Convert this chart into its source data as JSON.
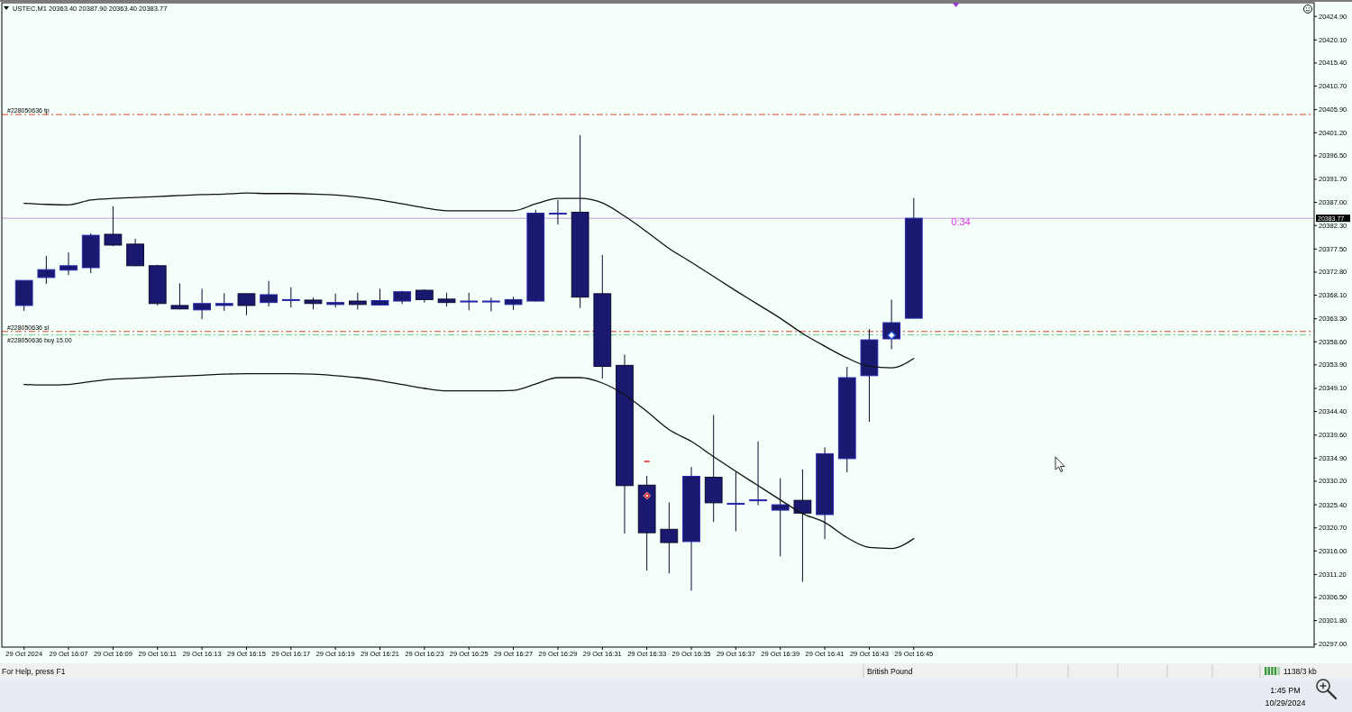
{
  "chart_data": {
    "type": "candlestick",
    "title": "USTEC,M1 20363.40 20387.90 20363.40 20383.77",
    "color": "#191970",
    "x": [
      "2024-10-29T16:05",
      "2024-10-29T16:06",
      "2024-10-29T16:07",
      "2024-10-29T16:08",
      "2024-10-29T16:09",
      "2024-10-29T16:10",
      "2024-10-29T16:11",
      "2024-10-29T16:12",
      "2024-10-29T16:13",
      "2024-10-29T16:14",
      "2024-10-29T16:15",
      "2024-10-29T16:16",
      "2024-10-29T16:17",
      "2024-10-29T16:18",
      "2024-10-29T16:19",
      "2024-10-29T16:20",
      "2024-10-29T16:21",
      "2024-10-29T16:22",
      "2024-10-29T16:23",
      "2024-10-29T16:24",
      "2024-10-29T16:25",
      "2024-10-29T16:26",
      "2024-10-29T16:27",
      "2024-10-29T16:28",
      "2024-10-29T16:29",
      "2024-10-29T16:30",
      "2024-10-29T16:31",
      "2024-10-29T16:32",
      "2024-10-29T16:33",
      "2024-10-29T16:34",
      "2024-10-29T16:35",
      "2024-10-29T16:36",
      "2024-10-29T16:37",
      "2024-10-29T16:38",
      "2024-10-29T16:39",
      "2024-10-29T16:40",
      "2024-10-29T16:41",
      "2024-10-29T16:42",
      "2024-10-29T16:43",
      "2024-10-29T16:44",
      "2024-10-29T16:45"
    ],
    "ohlc": [
      [
        20366.0,
        20371.1,
        20364.9,
        20371.1
      ],
      [
        20371.7,
        20376.1,
        20370.4,
        20373.3
      ],
      [
        20373.2,
        20376.8,
        20372.2,
        20374.1
      ],
      [
        20373.7,
        20380.7,
        20372.6,
        20380.3
      ],
      [
        20380.5,
        20386.2,
        20378.1,
        20378.3
      ],
      [
        20378.5,
        20379.6,
        20374.0,
        20374.1
      ],
      [
        20374.1,
        20374.3,
        20366.0,
        20366.4
      ],
      [
        20366.0,
        20370.5,
        20365.2,
        20365.3
      ],
      [
        20365.1,
        20369.4,
        20363.2,
        20366.4
      ],
      [
        20366.0,
        20368.5,
        20364.9,
        20366.4
      ],
      [
        20368.4,
        20368.4,
        20364.0,
        20366.0
      ],
      [
        20366.6,
        20371.0,
        20365.8,
        20368.2
      ],
      [
        20367.2,
        20369.7,
        20365.6,
        20367.2
      ],
      [
        20367.1,
        20367.6,
        20365.2,
        20366.4
      ],
      [
        20366.2,
        20368.4,
        20365.6,
        20366.6
      ],
      [
        20366.9,
        20368.6,
        20365.2,
        20366.2
      ],
      [
        20366.1,
        20369.4,
        20366.0,
        20367.0
      ],
      [
        20366.9,
        20369.0,
        20366.3,
        20368.8
      ],
      [
        20369.1,
        20369.3,
        20366.6,
        20367.2
      ],
      [
        20367.3,
        20368.6,
        20365.8,
        20366.6
      ],
      [
        20366.9,
        20368.6,
        20365.0,
        20366.9
      ],
      [
        20366.9,
        20367.6,
        20364.8,
        20366.9
      ],
      [
        20366.2,
        20367.8,
        20365.1,
        20367.2
      ],
      [
        20366.9,
        20385.5,
        20366.8,
        20384.8
      ],
      [
        20384.8,
        20387.5,
        20382.5,
        20384.8
      ],
      [
        20385.0,
        20400.7,
        20365.5,
        20367.7
      ],
      [
        20368.4,
        20376.3,
        20351.1,
        20353.6
      ],
      [
        20353.8,
        20356.0,
        20319.5,
        20329.3
      ],
      [
        20329.4,
        20331.3,
        20312.0,
        20319.7
      ],
      [
        20320.4,
        20325.9,
        20311.4,
        20317.7
      ],
      [
        20317.9,
        20333.1,
        20307.9,
        20331.2
      ],
      [
        20331.0,
        20343.7,
        20321.9,
        20325.8
      ],
      [
        20325.5,
        20332.1,
        20320.0,
        20325.7
      ],
      [
        20326.4,
        20338.3,
        20325.3,
        20326.4
      ],
      [
        20324.3,
        20330.8,
        20314.9,
        20325.4
      ],
      [
        20326.3,
        20332.6,
        20309.7,
        20323.7
      ],
      [
        20323.4,
        20337.1,
        20318.4,
        20335.8
      ],
      [
        20334.8,
        20353.5,
        20332.0,
        20351.3
      ],
      [
        20351.7,
        20361.2,
        20342.3,
        20359.0
      ],
      [
        20359.2,
        20367.2,
        20357.1,
        20362.5
      ],
      [
        20363.4,
        20387.9,
        20363.4,
        20383.77
      ]
    ],
    "series": [
      {
        "type": "line",
        "color": "#111111",
        "values": [
          20386.8,
          20386.6,
          20386.5,
          20387.5,
          20387.8,
          20388.0,
          20388.2,
          20388.4,
          20388.6,
          20388.7,
          20388.9,
          20388.8,
          20388.8,
          20388.7,
          20388.5,
          20388.1,
          20387.5,
          20386.7,
          20385.9,
          20385.3,
          20385.3,
          20385.3,
          20385.3,
          20386.7,
          20387.8,
          20387.8,
          20386.9,
          20384.2,
          20381.0,
          20377.6,
          20374.8,
          20371.9,
          20369.0,
          20366.2,
          20363.4,
          20360.3,
          20357.7,
          20355.3,
          20353.6,
          20353.3,
          20355.2
        ]
      },
      {
        "type": "line",
        "color": "#111111",
        "values": [
          20349.9,
          20349.8,
          20349.9,
          20350.5,
          20351.0,
          20351.2,
          20351.4,
          20351.6,
          20351.8,
          20352.0,
          20352.1,
          20352.1,
          20352.1,
          20352.0,
          20351.7,
          20351.3,
          20350.7,
          20349.9,
          20349.1,
          20348.6,
          20348.6,
          20348.6,
          20348.7,
          20350.0,
          20351.3,
          20351.3,
          20350.2,
          20347.8,
          20344.4,
          20340.7,
          20338.3,
          20335.2,
          20332.2,
          20329.3,
          20326.4,
          20323.6,
          20321.8,
          20318.7,
          20316.7,
          20316.5,
          20318.5
        ]
      }
    ],
    "xlim": [
      "2024-10-29T16:04",
      "2024-10-29T17:03"
    ],
    "xticks": [
      {
        "value": "2024-10-29T16:05",
        "label": "29 Oct 2024"
      },
      {
        "value": "2024-10-29T16:07",
        "label": "29 Oct 16:07"
      },
      {
        "value": "2024-10-29T16:09",
        "label": "29 Oct 16:09"
      },
      {
        "value": "2024-10-29T16:11",
        "label": "29 Oct 16:11"
      },
      {
        "value": "2024-10-29T16:13",
        "label": "29 Oct 16:13"
      },
      {
        "value": "2024-10-29T16:15",
        "label": "29 Oct 16:15"
      },
      {
        "value": "2024-10-29T16:17",
        "label": "29 Oct 16:17"
      },
      {
        "value": "2024-10-29T16:19",
        "label": "29 Oct 16:19"
      },
      {
        "value": "2024-10-29T16:21",
        "label": "29 Oct 16:21"
      },
      {
        "value": "2024-10-29T16:23",
        "label": "29 Oct 16:23"
      },
      {
        "value": "2024-10-29T16:25",
        "label": "29 Oct 16:25"
      },
      {
        "value": "2024-10-29T16:27",
        "label": "29 Oct 16:27"
      },
      {
        "value": "2024-10-29T16:29",
        "label": "29 Oct 16:29"
      },
      {
        "value": "2024-10-29T16:31",
        "label": "29 Oct 16:31"
      },
      {
        "value": "2024-10-29T16:33",
        "label": "29 Oct 16:33"
      },
      {
        "value": "2024-10-29T16:35",
        "label": "29 Oct 16:35"
      },
      {
        "value": "2024-10-29T16:37",
        "label": "29 Oct 16:37"
      },
      {
        "value": "2024-10-29T16:39",
        "label": "29 Oct 16:39"
      },
      {
        "value": "2024-10-29T16:41",
        "label": "29 Oct 16:41"
      },
      {
        "value": "2024-10-29T16:43",
        "label": "29 Oct 16:43"
      },
      {
        "value": "2024-10-29T16:45",
        "label": "29 Oct 16:45"
      }
    ],
    "ylim": [
      20296.4,
      20427.5
    ],
    "yticks": [
      {
        "value": 20424.9,
        "label": "20424.90"
      },
      {
        "value": 20420.1,
        "label": "20420.10"
      },
      {
        "value": 20415.4,
        "label": "20415.40"
      },
      {
        "value": 20410.7,
        "label": "20410.70"
      },
      {
        "value": 20405.9,
        "label": "20405.90"
      },
      {
        "value": 20401.2,
        "label": "20401.20"
      },
      {
        "value": 20396.5,
        "label": "20396.50"
      },
      {
        "value": 20391.7,
        "label": "20391.70"
      },
      {
        "value": 20387.0,
        "label": "20387.00"
      },
      {
        "value": 20382.3,
        "label": "20382.30"
      },
      {
        "value": 20377.5,
        "label": "20377.50"
      },
      {
        "value": 20372.8,
        "label": "20372.80"
      },
      {
        "value": 20368.1,
        "label": "20368.10"
      },
      {
        "value": 20363.3,
        "label": "20363.30"
      },
      {
        "value": 20358.6,
        "label": "20358.60"
      },
      {
        "value": 20353.9,
        "label": "20353.90"
      },
      {
        "value": 20349.1,
        "label": "20349.10"
      },
      {
        "value": 20344.4,
        "label": "20344.40"
      },
      {
        "value": 20339.6,
        "label": "20339.60"
      },
      {
        "value": 20334.9,
        "label": "20334.90"
      },
      {
        "value": 20330.2,
        "label": "20330.20"
      },
      {
        "value": 20325.4,
        "label": "20325.40"
      },
      {
        "value": 20320.7,
        "label": "20320.70"
      },
      {
        "value": 20316.0,
        "label": "20316.00"
      },
      {
        "value": 20311.2,
        "label": "20311.20"
      },
      {
        "value": 20306.5,
        "label": "20306.50"
      },
      {
        "value": 20301.8,
        "label": "20301.80"
      },
      {
        "value": 20297.0,
        "label": "20297.00"
      }
    ],
    "ref_lines": [
      {
        "axis": "y",
        "value": 20383.77,
        "label": "20383.77",
        "color": "#bf9fdc",
        "line_style": "solid"
      },
      {
        "axis": "y",
        "value": 20404.9,
        "label": "#228050636 tp",
        "color": "#d2452e",
        "line_style": "dashed"
      },
      {
        "axis": "y",
        "value": 20360.7,
        "label": "#228050636 sl",
        "color": "#d2452e",
        "line_style": "dashed"
      },
      {
        "axis": "y",
        "value": 20360.0,
        "label": "#228050636 buy 15.00",
        "color": "#6fcc80",
        "line_style": "dashed"
      }
    ],
    "annotations": [
      "0:34",
      "For Help, press F1",
      "British Pound",
      "1138/3 kb",
      "1:45 PM",
      "10/29/2024"
    ]
  }
}
